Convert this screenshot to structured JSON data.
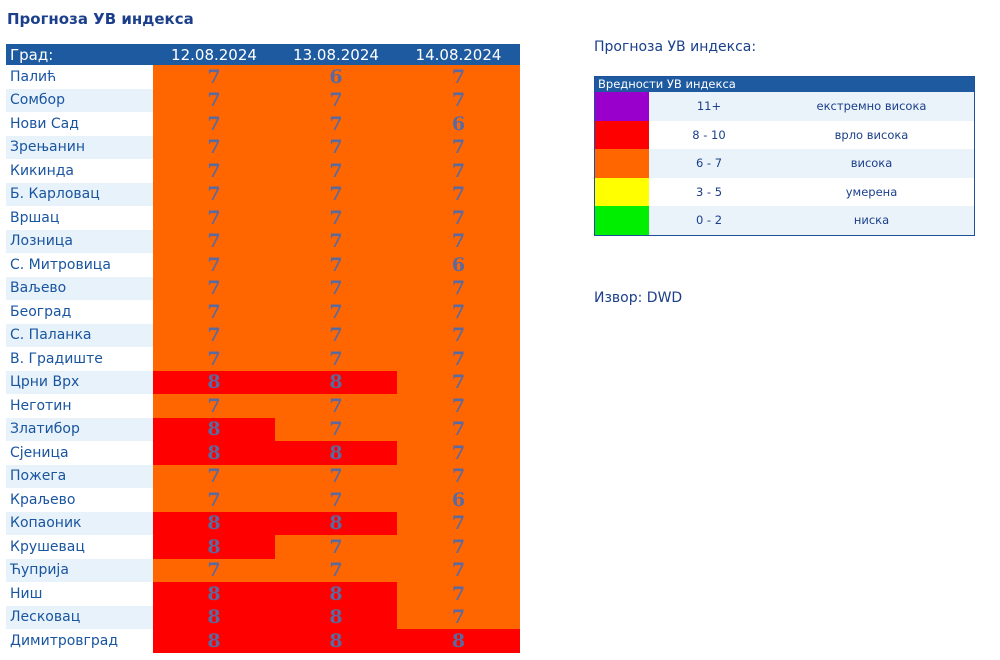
{
  "page_title": "Прогноза УВ индекса",
  "table": {
    "city_header": "Град:",
    "dates": [
      "12.08.2024",
      "13.08.2024",
      "14.08.2024"
    ],
    "rows": [
      {
        "city": "Палић",
        "values": [
          "7",
          "6",
          "7"
        ]
      },
      {
        "city": "Сомбор",
        "values": [
          "7",
          "7",
          "7"
        ]
      },
      {
        "city": "Нови Сад",
        "values": [
          "7",
          "7",
          "6"
        ]
      },
      {
        "city": "Зрењанин",
        "values": [
          "7",
          "7",
          "7"
        ]
      },
      {
        "city": "Кикинда",
        "values": [
          "7",
          "7",
          "7"
        ]
      },
      {
        "city": "Б. Карловац",
        "values": [
          "7",
          "7",
          "7"
        ]
      },
      {
        "city": "Вршац",
        "values": [
          "7",
          "7",
          "7"
        ]
      },
      {
        "city": "Лозница",
        "values": [
          "7",
          "7",
          "7"
        ]
      },
      {
        "city": "С. Митровица",
        "values": [
          "7",
          "7",
          "6"
        ]
      },
      {
        "city": "Ваљево",
        "values": [
          "7",
          "7",
          "7"
        ]
      },
      {
        "city": "Београд",
        "values": [
          "7",
          "7",
          "7"
        ]
      },
      {
        "city": "С. Паланка",
        "values": [
          "7",
          "7",
          "7"
        ]
      },
      {
        "city": "В. Градиште",
        "values": [
          "7",
          "7",
          "7"
        ]
      },
      {
        "city": "Црни Врх",
        "values": [
          "8",
          "8",
          "7"
        ]
      },
      {
        "city": "Неготин",
        "values": [
          "7",
          "7",
          "7"
        ]
      },
      {
        "city": "Златибор",
        "values": [
          "8",
          "7",
          "7"
        ]
      },
      {
        "city": "Сјеница",
        "values": [
          "8",
          "8",
          "7"
        ]
      },
      {
        "city": "Пожега",
        "values": [
          "7",
          "7",
          "7"
        ]
      },
      {
        "city": "Краљево",
        "values": [
          "7",
          "7",
          "6"
        ]
      },
      {
        "city": "Копаоник",
        "values": [
          "8",
          "8",
          "7"
        ]
      },
      {
        "city": "Крушевац",
        "values": [
          "8",
          "7",
          "7"
        ]
      },
      {
        "city": "Ћуприја",
        "values": [
          "7",
          "7",
          "7"
        ]
      },
      {
        "city": "Ниш",
        "values": [
          "8",
          "8",
          "7"
        ]
      },
      {
        "city": "Лесковац",
        "values": [
          "8",
          "8",
          "7"
        ]
      },
      {
        "city": "Димитровград",
        "values": [
          "8",
          "8",
          "8"
        ]
      }
    ]
  },
  "colors": {
    "header_bg": "#1e5aa0",
    "high": "#ff6600",
    "very_high": "#ff0000",
    "extreme": "#9900cc",
    "moderate": "#ffff00",
    "low": "#00ee00"
  },
  "side_title": "Прогноза УВ индекса:",
  "legend": {
    "header": "Вредности УВ индекса",
    "items": [
      {
        "color": "#9900cc",
        "range": "11+",
        "label": "екстремно висока"
      },
      {
        "color": "#ff0000",
        "range": "8 - 10",
        "label": "врло висока"
      },
      {
        "color": "#ff6600",
        "range": "6 - 7",
        "label": "висока"
      },
      {
        "color": "#ffff00",
        "range": "3 - 5",
        "label": "умерена"
      },
      {
        "color": "#00ee00",
        "range": "0 - 2",
        "label": "ниска"
      }
    ]
  },
  "source": "Извор: DWD"
}
